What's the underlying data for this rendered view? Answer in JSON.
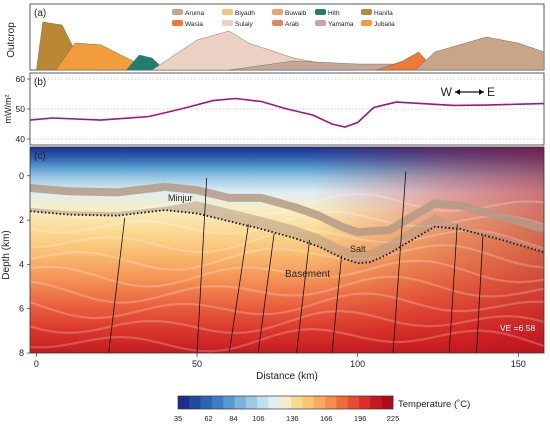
{
  "figure": {
    "panel_a": {
      "letter": "(a)",
      "ylabel": "Outcrop",
      "legend": [
        {
          "name": "Aruma",
          "color": "#c9a489"
        },
        {
          "name": "Biyadh",
          "color": "#f5c27a"
        },
        {
          "name": "Buwaib",
          "color": "#f0a276"
        },
        {
          "name": "Hith",
          "color": "#1f7e6d"
        },
        {
          "name": "Hanifa",
          "color": "#b98836"
        },
        {
          "name": "Wasia",
          "color": "#ea7a36"
        },
        {
          "name": "Sulaiy",
          "color": "#ecd0c4"
        },
        {
          "name": "Arab",
          "color": "#d98b5e"
        },
        {
          "name": "Yamama",
          "color": "#c4a69c"
        },
        {
          "name": "Jubaila",
          "color": "#f29c3b"
        }
      ]
    },
    "panel_b": {
      "letter": "(b)",
      "ylabel": "mW/m²",
      "yticks": [
        "60",
        "50",
        "40"
      ],
      "direction": {
        "west": "W",
        "east": "E"
      }
    },
    "panel_c": {
      "letter": "(c)",
      "ylabel": "Depth (km)",
      "xlabel": "Distance (km)",
      "yticks": [
        "0",
        "2",
        "4",
        "6",
        "8"
      ],
      "xticks": [
        "0",
        "50",
        "100",
        "150"
      ],
      "labels": {
        "minjur": "Minjur",
        "salt": "Salt",
        "basement": "Basement",
        "ve": "VE =6.58"
      }
    },
    "colorbar": {
      "title": "Temperature (˚C)",
      "ticks": [
        "35",
        "62",
        "84",
        "106",
        "136",
        "166",
        "196",
        "225"
      ],
      "colors": [
        "#1b2f8a",
        "#2249a0",
        "#2e63b5",
        "#3a7fc4",
        "#559bd1",
        "#78b4dc",
        "#9bcbe6",
        "#c0def0",
        "#e4eef2",
        "#f7ecc4",
        "#fbd98f",
        "#fbc375",
        "#f9a960",
        "#f58d4e",
        "#ee6c3c",
        "#e54c30",
        "#d92f27",
        "#c8171f",
        "#b3081c"
      ]
    }
  },
  "chart_data": [
    {
      "type": "area",
      "title": "",
      "ylabel": "Outcrop",
      "series": [
        {
          "name": "Hanifa",
          "x": [
            0,
            2,
            8,
            14,
            20
          ],
          "values": [
            0,
            0.8,
            0.75,
            0.1,
            0
          ]
        },
        {
          "name": "Jubaila",
          "x": [
            6,
            12,
            20,
            30,
            40
          ],
          "values": [
            0,
            0.45,
            0.42,
            0.15,
            0
          ]
        },
        {
          "name": "Hith",
          "x": [
            28,
            32,
            36,
            40
          ],
          "values": [
            0,
            0.25,
            0.2,
            0
          ]
        },
        {
          "name": "Sulaiy",
          "x": [
            36,
            50,
            60,
            66,
            80,
            100
          ],
          "values": [
            0,
            0.5,
            0.65,
            0.45,
            0.2,
            0
          ]
        },
        {
          "name": "Yamama",
          "x": [
            60,
            80,
            100,
            116,
            130
          ],
          "values": [
            0,
            0.15,
            0.1,
            0.1,
            0
          ]
        },
        {
          "name": "Wasia",
          "x": [
            106,
            114,
            119,
            124
          ],
          "values": [
            0,
            0.15,
            0.3,
            0
          ]
        },
        {
          "name": "Aruma",
          "x": [
            118,
            124,
            140,
            150,
            158
          ],
          "values": [
            0,
            0.3,
            0.55,
            0.45,
            0.3
          ]
        }
      ]
    },
    {
      "type": "line",
      "title": "",
      "xlabel": "",
      "ylabel": "mW/m²",
      "ylim": [
        38,
        62
      ],
      "x": [
        -5,
        5,
        20,
        35,
        45,
        55,
        62,
        70,
        78,
        86,
        92,
        96,
        100,
        105,
        112,
        120,
        130,
        140,
        150,
        158
      ],
      "series": [
        {
          "name": "",
          "values": [
            46,
            47,
            46.3,
            47.5,
            50,
            52.8,
            53.5,
            52.5,
            50,
            48,
            45,
            44,
            45.5,
            50.5,
            52.3,
            51.8,
            51.2,
            51.3,
            51.6,
            51.8
          ]
        }
      ]
    },
    {
      "type": "heatmap",
      "title": "",
      "xlabel": "Distance (km)",
      "ylabel": "Depth (km)",
      "xlim": [
        -2,
        158
      ],
      "ylim": [
        8,
        -1.3
      ],
      "colorbar_label": "Temperature (˚C)",
      "colorbar_range": [
        35,
        225
      ],
      "basement_top": {
        "x": [
          -2,
          10,
          25,
          40,
          50,
          60,
          70,
          80,
          88,
          95,
          100,
          104,
          110,
          118,
          124,
          132,
          145,
          158
        ],
        "depth": [
          1.6,
          1.75,
          1.8,
          1.55,
          1.7,
          2.05,
          2.4,
          2.8,
          3.2,
          3.7,
          3.95,
          3.9,
          3.5,
          2.8,
          2.3,
          2.4,
          2.9,
          3.45
        ]
      },
      "faults": [
        {
          "x": [
            27.5,
            22.5
          ],
          "depth": [
            1.9,
            8
          ]
        },
        {
          "x": [
            53,
            50
          ],
          "depth": [
            0.1,
            8
          ]
        },
        {
          "x": [
            66,
            60
          ],
          "depth": [
            2.2,
            8
          ]
        },
        {
          "x": [
            74,
            69
          ],
          "depth": [
            2.6,
            8
          ]
        },
        {
          "x": [
            85,
            81
          ],
          "depth": [
            2.9,
            8
          ]
        },
        {
          "x": [
            95,
            92
          ],
          "depth": [
            3.6,
            8
          ]
        },
        {
          "x": [
            115,
            111
          ],
          "depth": [
            -0.2,
            8
          ]
        },
        {
          "x": [
            131,
            128.5
          ],
          "depth": [
            2.2,
            8
          ]
        },
        {
          "x": [
            139,
            137
          ],
          "depth": [
            2.7,
            8
          ]
        }
      ]
    }
  ]
}
